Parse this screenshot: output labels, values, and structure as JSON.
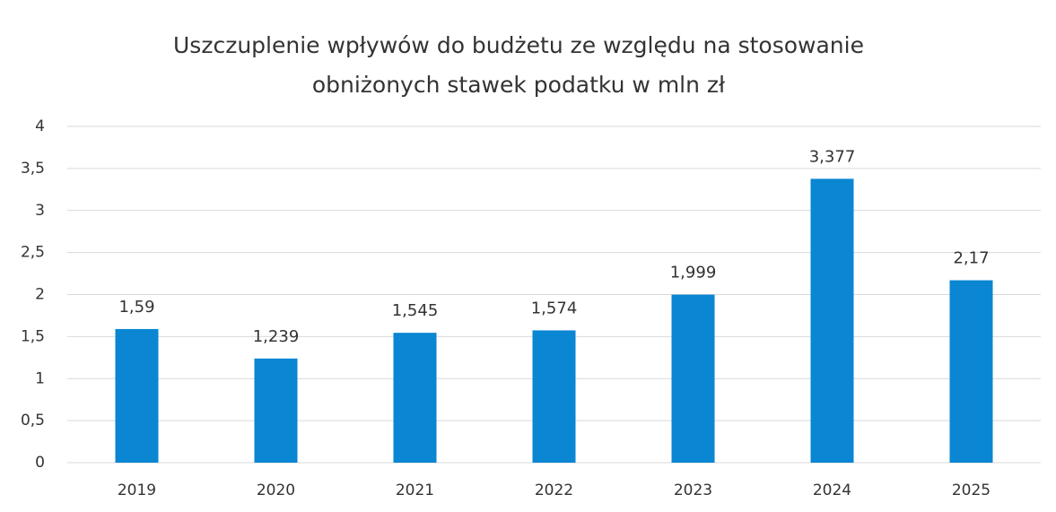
{
  "chart_data": {
    "type": "bar",
    "title": [
      "Uszczuplenie wpływów do budżetu ze względu na stosowanie",
      "obniżonych stawek podatku w mln zł"
    ],
    "categories": [
      "2019",
      "2020",
      "2021",
      "2022",
      "2023",
      "2024",
      "2025"
    ],
    "values": [
      1.59,
      1.239,
      1.545,
      1.574,
      1.999,
      3.377,
      2.17
    ],
    "value_labels": [
      "1,59",
      "1,239",
      "1,545",
      "1,574",
      "1,999",
      "3,377",
      "2,17"
    ],
    "color": "#0a86d2",
    "ylim": [
      0,
      4
    ],
    "yticks": [
      0,
      {
        "value": 0.5,
        "label": "0,5"
      },
      1,
      {
        "value": 1.5,
        "label": "1,5"
      },
      2,
      {
        "value": 2.5,
        "label": "2,5"
      },
      3,
      {
        "value": 3.5,
        "label": "3,5"
      },
      4
    ],
    "grid": true
  }
}
